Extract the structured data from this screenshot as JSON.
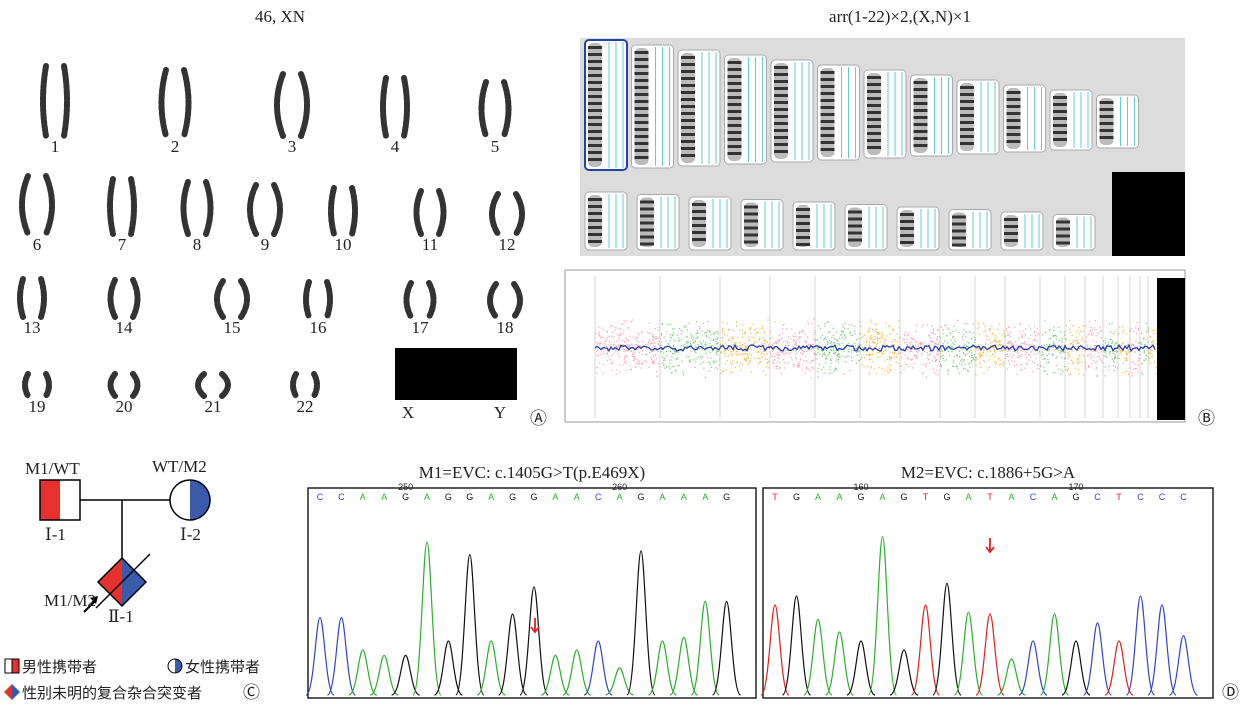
{
  "panel_a": {
    "title": "46, XN",
    "labels": [
      "1",
      "2",
      "3",
      "4",
      "5",
      "6",
      "7",
      "8",
      "9",
      "10",
      "11",
      "12",
      "13",
      "14",
      "15",
      "16",
      "17",
      "18",
      "19",
      "20",
      "21",
      "22"
    ],
    "sex_labels": [
      "X",
      "Y"
    ],
    "tag": "Ⓐ"
  },
  "panel_b": {
    "title": "arr(1-22)×2,(X,N)×1",
    "tag": "Ⓑ"
  },
  "panel_c": {
    "father": {
      "genotype": "M1/WT",
      "id": "Ⅰ-1"
    },
    "mother": {
      "genotype": "WT/M2",
      "id": "Ⅰ-2"
    },
    "proband": {
      "genotype": "M1/M2",
      "id": "Ⅱ-1"
    },
    "legend": [
      "男性携带者",
      "女性携带者",
      "性别未明的复合杂合突变者"
    ],
    "tag": "Ⓒ"
  },
  "panel_d": {
    "traces": [
      {
        "title": "M1=EVC: c.1405G>T(p.E469X)",
        "bases": [
          "C",
          "C",
          "A",
          "A",
          "G",
          "A",
          "G",
          "G",
          "A",
          "G",
          "G",
          "A",
          "A",
          "C",
          "A",
          "G",
          "A",
          "A",
          "A",
          "G"
        ],
        "positions": [
          "250",
          "260"
        ]
      },
      {
        "title": "M2=EVC: c.1886+5G>A",
        "bases": [
          "T",
          "G",
          "A",
          "A",
          "G",
          "A",
          "G",
          "T",
          "G",
          "A",
          "T",
          "A",
          "C",
          "A",
          "G",
          "C",
          "T",
          "C",
          "C",
          "C"
        ],
        "positions": [
          "160",
          "170"
        ]
      }
    ],
    "tag": "Ⓓ"
  }
}
